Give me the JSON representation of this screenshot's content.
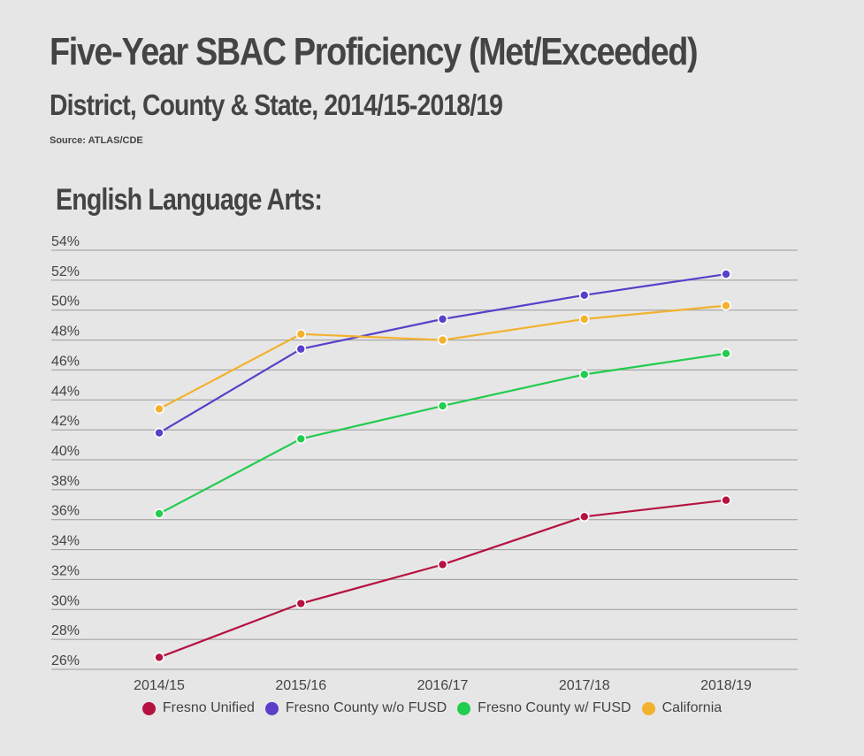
{
  "header": {
    "title": "Five-Year SBAC Proficiency (Met/Exceeded)",
    "subtitle": "District, County & State, 2014/15-2018/19",
    "source": "Source: ATLAS/CDE",
    "section": "English Language Arts:"
  },
  "chart_data": {
    "type": "line",
    "title": "Five-Year SBAC Proficiency (Met/Exceeded)",
    "subtitle": "District, County & State, 2014/15-2018/19",
    "section": "English Language Arts:",
    "categories": [
      "2014/15",
      "2015/16",
      "2016/17",
      "2017/18",
      "2018/19"
    ],
    "y_ticks": [
      "54%",
      "52%",
      "50%",
      "48%",
      "46%",
      "44%",
      "42%",
      "40%",
      "38%",
      "36%",
      "34%",
      "32%",
      "30%",
      "28%",
      "26%"
    ],
    "ylim": [
      26,
      54
    ],
    "y_unit": "%",
    "grid": true,
    "legend_position": "bottom",
    "series": [
      {
        "name": "Fresno Unified",
        "color": "#b5123f",
        "values": [
          26.8,
          30.4,
          33.0,
          36.2,
          37.3
        ]
      },
      {
        "name": "Fresno County w/o FUSD",
        "color": "#5a3fc9",
        "values": [
          41.8,
          47.4,
          49.4,
          51.0,
          52.4
        ]
      },
      {
        "name": "Fresno County w/ FUSD",
        "color": "#22cc4f",
        "values": [
          36.4,
          41.4,
          43.6,
          45.7,
          47.1
        ]
      },
      {
        "name": "California",
        "color": "#f2b22e",
        "values": [
          43.4,
          48.4,
          48.0,
          49.4,
          50.3
        ]
      }
    ]
  }
}
